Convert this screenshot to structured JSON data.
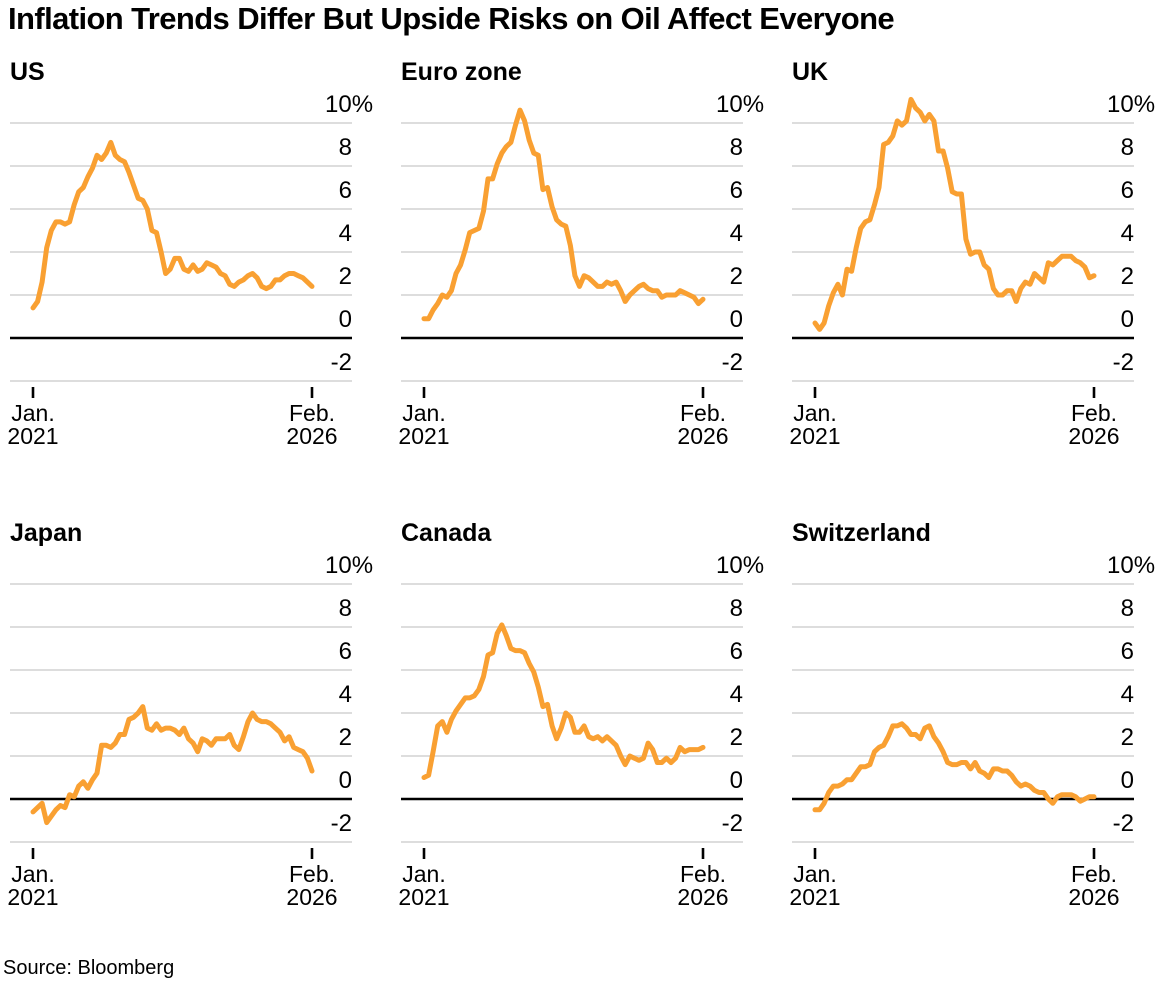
{
  "page": {
    "title": "Inflation Trends Differ But Upside Risks on Oil Affect Everyone",
    "source": "Source: Bloomberg"
  },
  "colors": {
    "line": "#F9A032",
    "grid": "#D8D8D8",
    "zero_line": "#000000",
    "text": "#000000",
    "background": "#FFFFFF"
  },
  "axis": {
    "y_ticks": [
      "10%",
      "8",
      "6",
      "4",
      "2",
      "0",
      "-2"
    ],
    "y_tick_values": [
      10,
      8,
      6,
      4,
      2,
      0,
      -2
    ],
    "ylim": [
      -2,
      10
    ],
    "x_start_lines": [
      "Jan.",
      "2021"
    ],
    "x_end_lines": [
      "Feb.",
      "2026"
    ],
    "grid": "horizontal only, zero line emphasized black"
  },
  "chart_data": [
    {
      "type": "line",
      "title": "US",
      "x_start": "2021-01",
      "x_end": "2026-02",
      "frequency": "monthly",
      "values": [
        1.4,
        1.7,
        2.6,
        4.2,
        5.0,
        5.4,
        5.4,
        5.3,
        5.4,
        6.2,
        6.8,
        7.0,
        7.5,
        7.9,
        8.5,
        8.3,
        8.6,
        9.1,
        8.5,
        8.3,
        8.2,
        7.7,
        7.1,
        6.5,
        6.4,
        6.0,
        5.0,
        4.9,
        4.0,
        3.0,
        3.2,
        3.7,
        3.7,
        3.2,
        3.1,
        3.4,
        3.1,
        3.2,
        3.5,
        3.4,
        3.3,
        3.0,
        2.9,
        2.5,
        2.4,
        2.6,
        2.7,
        2.9,
        3.0,
        2.8,
        2.4,
        2.3,
        2.4,
        2.7,
        2.7,
        2.9,
        3.0,
        3.0,
        2.9,
        2.8,
        2.6,
        2.4
      ]
    },
    {
      "type": "line",
      "title": "Euro zone",
      "x_start": "2021-01",
      "x_end": "2026-02",
      "frequency": "monthly",
      "values": [
        0.9,
        0.9,
        1.3,
        1.6,
        2.0,
        1.9,
        2.2,
        3.0,
        3.4,
        4.1,
        4.9,
        5.0,
        5.1,
        5.9,
        7.4,
        7.4,
        8.1,
        8.6,
        8.9,
        9.1,
        9.9,
        10.6,
        10.1,
        9.2,
        8.6,
        8.5,
        6.9,
        7.0,
        6.1,
        5.5,
        5.3,
        5.2,
        4.3,
        2.9,
        2.4,
        2.9,
        2.8,
        2.6,
        2.4,
        2.4,
        2.6,
        2.5,
        2.6,
        2.2,
        1.7,
        2.0,
        2.2,
        2.4,
        2.5,
        2.3,
        2.2,
        2.2,
        1.9,
        2.0,
        2.0,
        2.0,
        2.2,
        2.1,
        2.0,
        1.9,
        1.6,
        1.8
      ]
    },
    {
      "type": "line",
      "title": "UK",
      "x_start": "2021-01",
      "x_end": "2026-02",
      "frequency": "monthly",
      "values": [
        0.7,
        0.4,
        0.7,
        1.5,
        2.1,
        2.5,
        2.0,
        3.2,
        3.1,
        4.2,
        5.1,
        5.4,
        5.5,
        6.2,
        7.0,
        9.0,
        9.1,
        9.4,
        10.1,
        9.9,
        10.1,
        11.1,
        10.7,
        10.5,
        10.1,
        10.4,
        10.1,
        8.7,
        8.7,
        7.9,
        6.8,
        6.7,
        6.7,
        4.6,
        3.9,
        4.0,
        4.0,
        3.4,
        3.2,
        2.3,
        2.0,
        2.0,
        2.2,
        2.2,
        1.7,
        2.3,
        2.6,
        2.5,
        3.0,
        2.8,
        2.6,
        3.5,
        3.4,
        3.6,
        3.8,
        3.8,
        3.8,
        3.6,
        3.5,
        3.3,
        2.8,
        2.9
      ]
    },
    {
      "type": "line",
      "title": "Japan",
      "x_start": "2021-01",
      "x_end": "2026-02",
      "frequency": "monthly",
      "values": [
        -0.6,
        -0.4,
        -0.2,
        -1.1,
        -0.8,
        -0.5,
        -0.3,
        -0.4,
        0.2,
        0.1,
        0.6,
        0.8,
        0.5,
        0.9,
        1.2,
        2.5,
        2.5,
        2.4,
        2.6,
        3.0,
        3.0,
        3.7,
        3.8,
        4.0,
        4.3,
        3.3,
        3.2,
        3.5,
        3.2,
        3.3,
        3.3,
        3.2,
        3.0,
        3.3,
        2.8,
        2.6,
        2.2,
        2.8,
        2.7,
        2.5,
        2.8,
        2.8,
        2.8,
        3.0,
        2.5,
        2.3,
        2.9,
        3.6,
        4.0,
        3.7,
        3.6,
        3.6,
        3.5,
        3.3,
        3.1,
        2.7,
        2.9,
        2.4,
        2.3,
        2.2,
        1.9,
        1.3
      ]
    },
    {
      "type": "line",
      "title": "Canada",
      "x_start": "2021-01",
      "x_end": "2026-02",
      "frequency": "monthly",
      "values": [
        1.0,
        1.1,
        2.2,
        3.4,
        3.6,
        3.1,
        3.7,
        4.1,
        4.4,
        4.7,
        4.7,
        4.8,
        5.1,
        5.7,
        6.7,
        6.8,
        7.7,
        8.1,
        7.6,
        7.0,
        6.9,
        6.9,
        6.8,
        6.3,
        5.9,
        5.2,
        4.3,
        4.4,
        3.4,
        2.8,
        3.3,
        4.0,
        3.8,
        3.1,
        3.1,
        3.4,
        2.9,
        2.8,
        2.9,
        2.7,
        2.9,
        2.7,
        2.5,
        2.0,
        1.6,
        2.0,
        1.9,
        1.8,
        1.9,
        2.6,
        2.3,
        1.7,
        1.7,
        1.9,
        1.7,
        1.9,
        2.4,
        2.2,
        2.3,
        2.3,
        2.3,
        2.4
      ]
    },
    {
      "type": "line",
      "title": "Switzerland",
      "x_start": "2021-01",
      "x_end": "2026-02",
      "frequency": "monthly",
      "values": [
        -0.5,
        -0.5,
        -0.2,
        0.3,
        0.6,
        0.6,
        0.7,
        0.9,
        0.9,
        1.2,
        1.5,
        1.5,
        1.6,
        2.2,
        2.4,
        2.5,
        2.9,
        3.4,
        3.4,
        3.5,
        3.3,
        3.0,
        3.0,
        2.8,
        3.3,
        3.4,
        2.9,
        2.6,
        2.2,
        1.7,
        1.6,
        1.6,
        1.7,
        1.7,
        1.4,
        1.7,
        1.3,
        1.2,
        1.0,
        1.4,
        1.4,
        1.3,
        1.3,
        1.1,
        0.8,
        0.6,
        0.7,
        0.6,
        0.4,
        0.3,
        0.3,
        0.0,
        -0.2,
        0.1,
        0.2,
        0.2,
        0.2,
        0.1,
        -0.1,
        0.0,
        0.1,
        0.1
      ]
    }
  ]
}
